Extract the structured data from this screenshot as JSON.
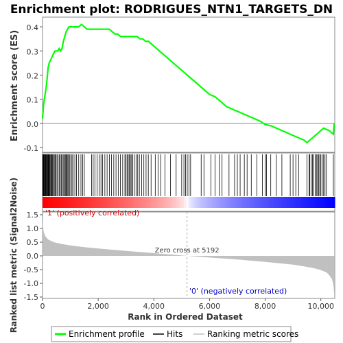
{
  "chart_data": {
    "type": "line",
    "title": "Enrichment plot: RODRIGUES_NTN1_TARGETS_DN",
    "es_panel": {
      "ylabel": "Enrichment score (ES)",
      "ylim": [
        -0.12,
        0.44
      ],
      "yticks": [
        "0.4",
        "0.3",
        "0.2",
        "0.1",
        "0.0",
        "-0.1"
      ],
      "ytick_values": [
        0.4,
        0.3,
        0.2,
        0.1,
        0.0,
        -0.1
      ],
      "series": [
        {
          "name": "Enrichment profile",
          "color": "#00ff00",
          "x": [
            0,
            40,
            80,
            120,
            160,
            200,
            240,
            280,
            320,
            360,
            400,
            450,
            500,
            550,
            600,
            650,
            700,
            750,
            800,
            850,
            900,
            950,
            1000,
            1100,
            1200,
            1300,
            1400,
            1500,
            1600,
            1700,
            1800,
            1900,
            2000,
            2100,
            2200,
            2300,
            2400,
            2500,
            2600,
            2700,
            2800,
            2900,
            3000,
            3100,
            3200,
            3300,
            3400,
            3500,
            3600,
            3700,
            3800,
            3900,
            4000,
            4200,
            4400,
            4600,
            4800,
            5000,
            5200,
            5400,
            5600,
            5800,
            6000,
            6200,
            6400,
            6600,
            6800,
            7000,
            7200,
            7400,
            7600,
            7800,
            8000,
            8200,
            8400,
            8600,
            8800,
            9000,
            9200,
            9400,
            9500,
            9600,
            9700,
            9800,
            9900,
            10000,
            10100,
            10200,
            10300,
            10400,
            10450,
            10480
          ],
          "y": [
            0.02,
            0.08,
            0.11,
            0.14,
            0.18,
            0.23,
            0.25,
            0.26,
            0.27,
            0.28,
            0.29,
            0.3,
            0.3,
            0.3,
            0.31,
            0.3,
            0.31,
            0.34,
            0.36,
            0.38,
            0.39,
            0.4,
            0.4,
            0.4,
            0.4,
            0.4,
            0.41,
            0.4,
            0.39,
            0.39,
            0.39,
            0.39,
            0.39,
            0.39,
            0.39,
            0.39,
            0.39,
            0.38,
            0.37,
            0.37,
            0.36,
            0.36,
            0.36,
            0.36,
            0.36,
            0.36,
            0.36,
            0.35,
            0.35,
            0.34,
            0.34,
            0.33,
            0.32,
            0.3,
            0.28,
            0.26,
            0.24,
            0.22,
            0.2,
            0.18,
            0.16,
            0.14,
            0.12,
            0.11,
            0.09,
            0.07,
            0.06,
            0.05,
            0.04,
            0.03,
            0.02,
            0.01,
            -0.005,
            -0.01,
            -0.02,
            -0.03,
            -0.04,
            -0.05,
            -0.06,
            -0.07,
            -0.08,
            -0.07,
            -0.06,
            -0.05,
            -0.04,
            -0.03,
            -0.02,
            -0.025,
            -0.03,
            -0.04,
            -0.045,
            0.0
          ]
        }
      ]
    },
    "hits_panel": {
      "hit_ranks": [
        5,
        15,
        30,
        45,
        60,
        80,
        100,
        120,
        140,
        160,
        180,
        200,
        220,
        240,
        260,
        290,
        310,
        330,
        360,
        390,
        420,
        450,
        480,
        520,
        560,
        600,
        640,
        680,
        720,
        760,
        790,
        820,
        850,
        880,
        910,
        940,
        980,
        1020,
        1060,
        1100,
        1160,
        1220,
        1300,
        1380,
        1440,
        1500,
        1760,
        1820,
        1880,
        1960,
        2040,
        2100,
        2160,
        2240,
        2320,
        2400,
        2480,
        2560,
        2640,
        2720,
        2800,
        2880,
        2960,
        3000,
        3040,
        3080,
        3120,
        3160,
        3200,
        3240,
        3300,
        3360,
        3420,
        3480,
        3560,
        3640,
        3720,
        3800,
        3900,
        4050,
        4150,
        4250,
        4400,
        4600,
        4800,
        5000,
        5080,
        5140,
        5200,
        5260,
        5320,
        5700,
        5800,
        6050,
        6200,
        6350,
        6450,
        6700,
        6900,
        7000,
        7100,
        7250,
        7350,
        7500,
        7700,
        7900,
        8000,
        8050,
        8200,
        8400,
        8600,
        8900,
        9000,
        9100,
        9200,
        9500,
        9580,
        9600,
        9650,
        9700,
        9750,
        9800,
        9840,
        9880,
        9920,
        9960,
        10000,
        10050,
        10100,
        10150,
        10200,
        10450
      ]
    },
    "band": {
      "label_pos": "'1' (positively correlated)",
      "label_neg": "'0' (negatively correlated)",
      "color_pos": "#ff0000",
      "color_neg": "#0000ff"
    },
    "metric_panel": {
      "ylabel": "Ranked list metric (Signal2Noise)",
      "ylim": [
        -1.55,
        1.6
      ],
      "yticks": [
        "1.5",
        "1.0",
        "0.5",
        "0.0",
        "-0.5",
        "-1.0",
        "-1.5"
      ],
      "ytick_values": [
        1.5,
        1.0,
        0.5,
        0.0,
        -0.5,
        -1.0,
        -1.5
      ],
      "x": [
        0,
        20,
        50,
        100,
        200,
        400,
        700,
        1000,
        1500,
        2000,
        3000,
        4000,
        5192,
        6000,
        7000,
        8000,
        9000,
        9500,
        9800,
        10000,
        10200,
        10300,
        10400,
        10450,
        10480
      ],
      "y": [
        1.3,
        1.0,
        0.85,
        0.72,
        0.6,
        0.5,
        0.43,
        0.38,
        0.32,
        0.27,
        0.18,
        0.1,
        0.0,
        -0.06,
        -0.13,
        -0.22,
        -0.32,
        -0.4,
        -0.46,
        -0.52,
        -0.6,
        -0.7,
        -0.85,
        -1.05,
        -1.4
      ],
      "color": "#c0c0c0",
      "zero_cross_label": "Zero cross at 5192",
      "zero_cross_rank": 5192
    },
    "xaxis": {
      "xlabel": "Rank in Ordered Dataset",
      "xlim": [
        0,
        10500
      ],
      "xticks": [
        "0",
        "2,000",
        "4,000",
        "6,000",
        "8,000",
        "10,000"
      ],
      "xtick_values": [
        0,
        2000,
        4000,
        6000,
        8000,
        10000
      ]
    },
    "legend": {
      "items": [
        {
          "label": "Enrichment profile",
          "color": "#00ff00"
        },
        {
          "label": "Hits",
          "color": "#000000"
        },
        {
          "label": "Ranking metric scores",
          "color": "#c0c0c0"
        }
      ]
    }
  }
}
